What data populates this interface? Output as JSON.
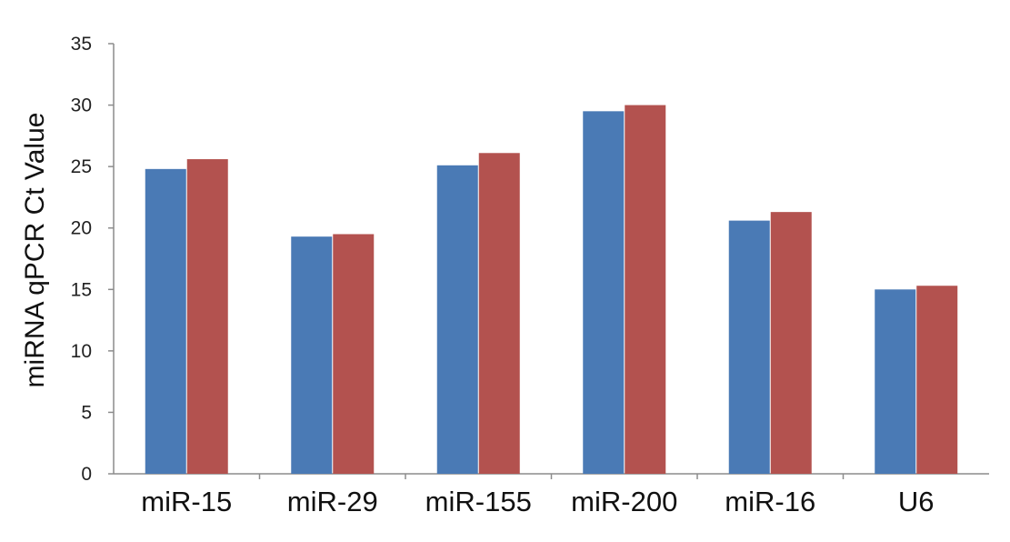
{
  "chart_data": {
    "type": "bar",
    "title": "",
    "xlabel": "",
    "ylabel": "miRNA qPCR Ct Value",
    "categories": [
      "miR-15",
      "miR-29",
      "miR-155",
      "miR-200",
      "miR-16",
      "U6"
    ],
    "series": [
      {
        "values": [
          24.8,
          19.3,
          25.1,
          29.5,
          20.6,
          15.0
        ],
        "color": "#4a7ab5"
      },
      {
        "values": [
          25.6,
          19.5,
          26.1,
          30.0,
          21.3,
          15.3
        ],
        "color": "#b3524f"
      }
    ],
    "ylim": [
      0,
      35
    ],
    "yticks": [
      "0",
      "5",
      "10",
      "15",
      "20",
      "25",
      "30",
      "35"
    ],
    "grid": false,
    "legend": "none"
  }
}
